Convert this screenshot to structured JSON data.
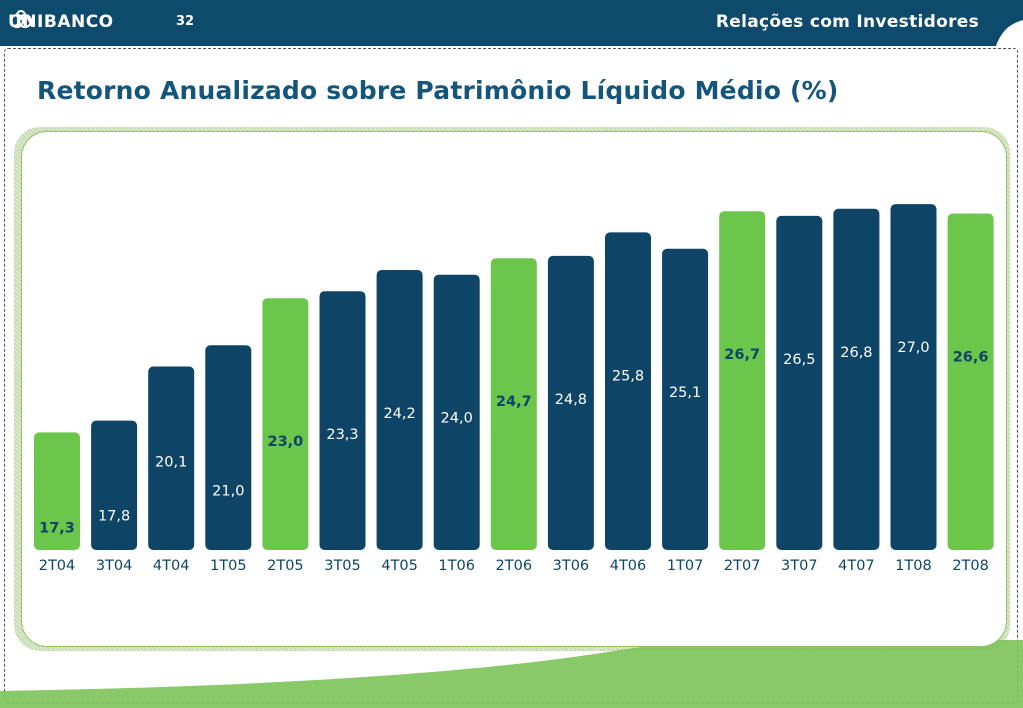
{
  "header": {
    "brand": "UNIBANCO",
    "page_number": "32",
    "section": "Relações com Investidores"
  },
  "colors": {
    "header_bg": "#0d4a6b",
    "title": "#14557a",
    "bar_dark": "#0e4566",
    "bar_green": "#6cc64c",
    "label_on_dark": "#ffffff",
    "label_on_green": "#0e4566",
    "axis_text": "#0e4566"
  },
  "chart_data": {
    "type": "bar",
    "title": "Retorno Anualizado sobre Patrimônio Líquido Médio (%)",
    "categories": [
      "2T04",
      "3T04",
      "4T04",
      "1T05",
      "2T05",
      "3T05",
      "4T05",
      "1T06",
      "2T06",
      "3T06",
      "4T06",
      "1T07",
      "2T07",
      "3T07",
      "4T07",
      "1T08",
      "2T08"
    ],
    "values": [
      17.3,
      17.8,
      20.1,
      21.0,
      23.0,
      23.3,
      24.2,
      24.0,
      24.7,
      24.8,
      25.8,
      25.1,
      26.7,
      26.5,
      26.8,
      27.0,
      26.6
    ],
    "value_labels": [
      "17,3",
      "17,8",
      "20,1",
      "21,0",
      "23,0",
      "23,3",
      "24,2",
      "24,0",
      "24,7",
      "24,8",
      "25,8",
      "25,1",
      "26,7",
      "26,5",
      "26,8",
      "27,0",
      "26,6"
    ],
    "highlight": [
      true,
      false,
      false,
      false,
      true,
      false,
      false,
      false,
      true,
      false,
      false,
      false,
      true,
      false,
      false,
      false,
      true
    ],
    "ylim": [
      12.3,
      27.6
    ],
    "grid": false,
    "legend": "none"
  }
}
